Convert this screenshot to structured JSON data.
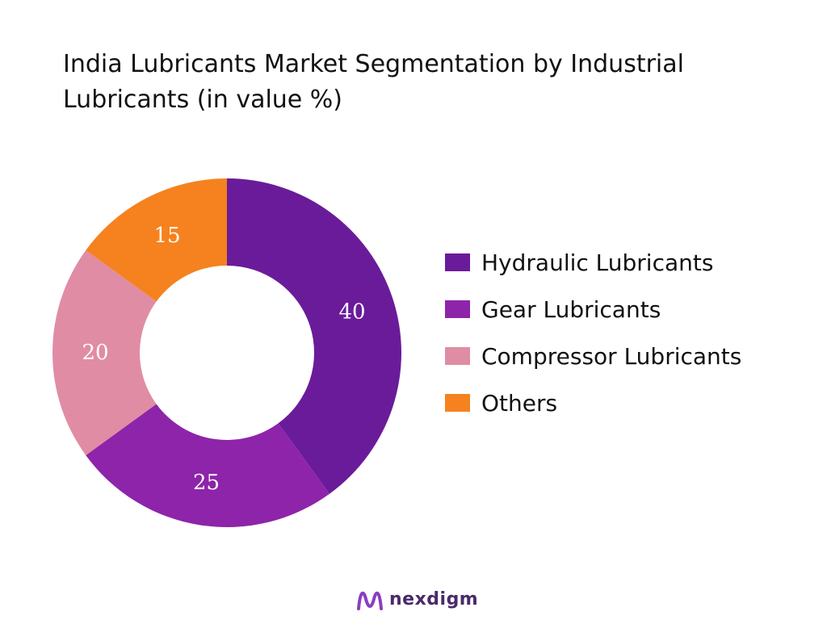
{
  "title_lines": [
    "India Lubricants Market Segmentation by Industrial",
    "Lubricants (in value %)"
  ],
  "chart_data": {
    "type": "pie",
    "title": "India Lubricants Market Segmentation by Industrial Lubricants (in value %)",
    "categories": [
      "Hydraulic Lubricants",
      "Gear Lubricants",
      "Compressor Lubricants",
      "Others"
    ],
    "values": [
      40,
      25,
      20,
      15
    ],
    "value_labels": [
      "40",
      "25",
      "20",
      "15"
    ],
    "colors": [
      "#6a1b9a",
      "#8e24aa",
      "#e08ca4",
      "#f5821f"
    ],
    "donut": true,
    "legend_position": "right"
  },
  "brand": {
    "name": "nexdigm",
    "mark_color": "#8a3fbf"
  }
}
